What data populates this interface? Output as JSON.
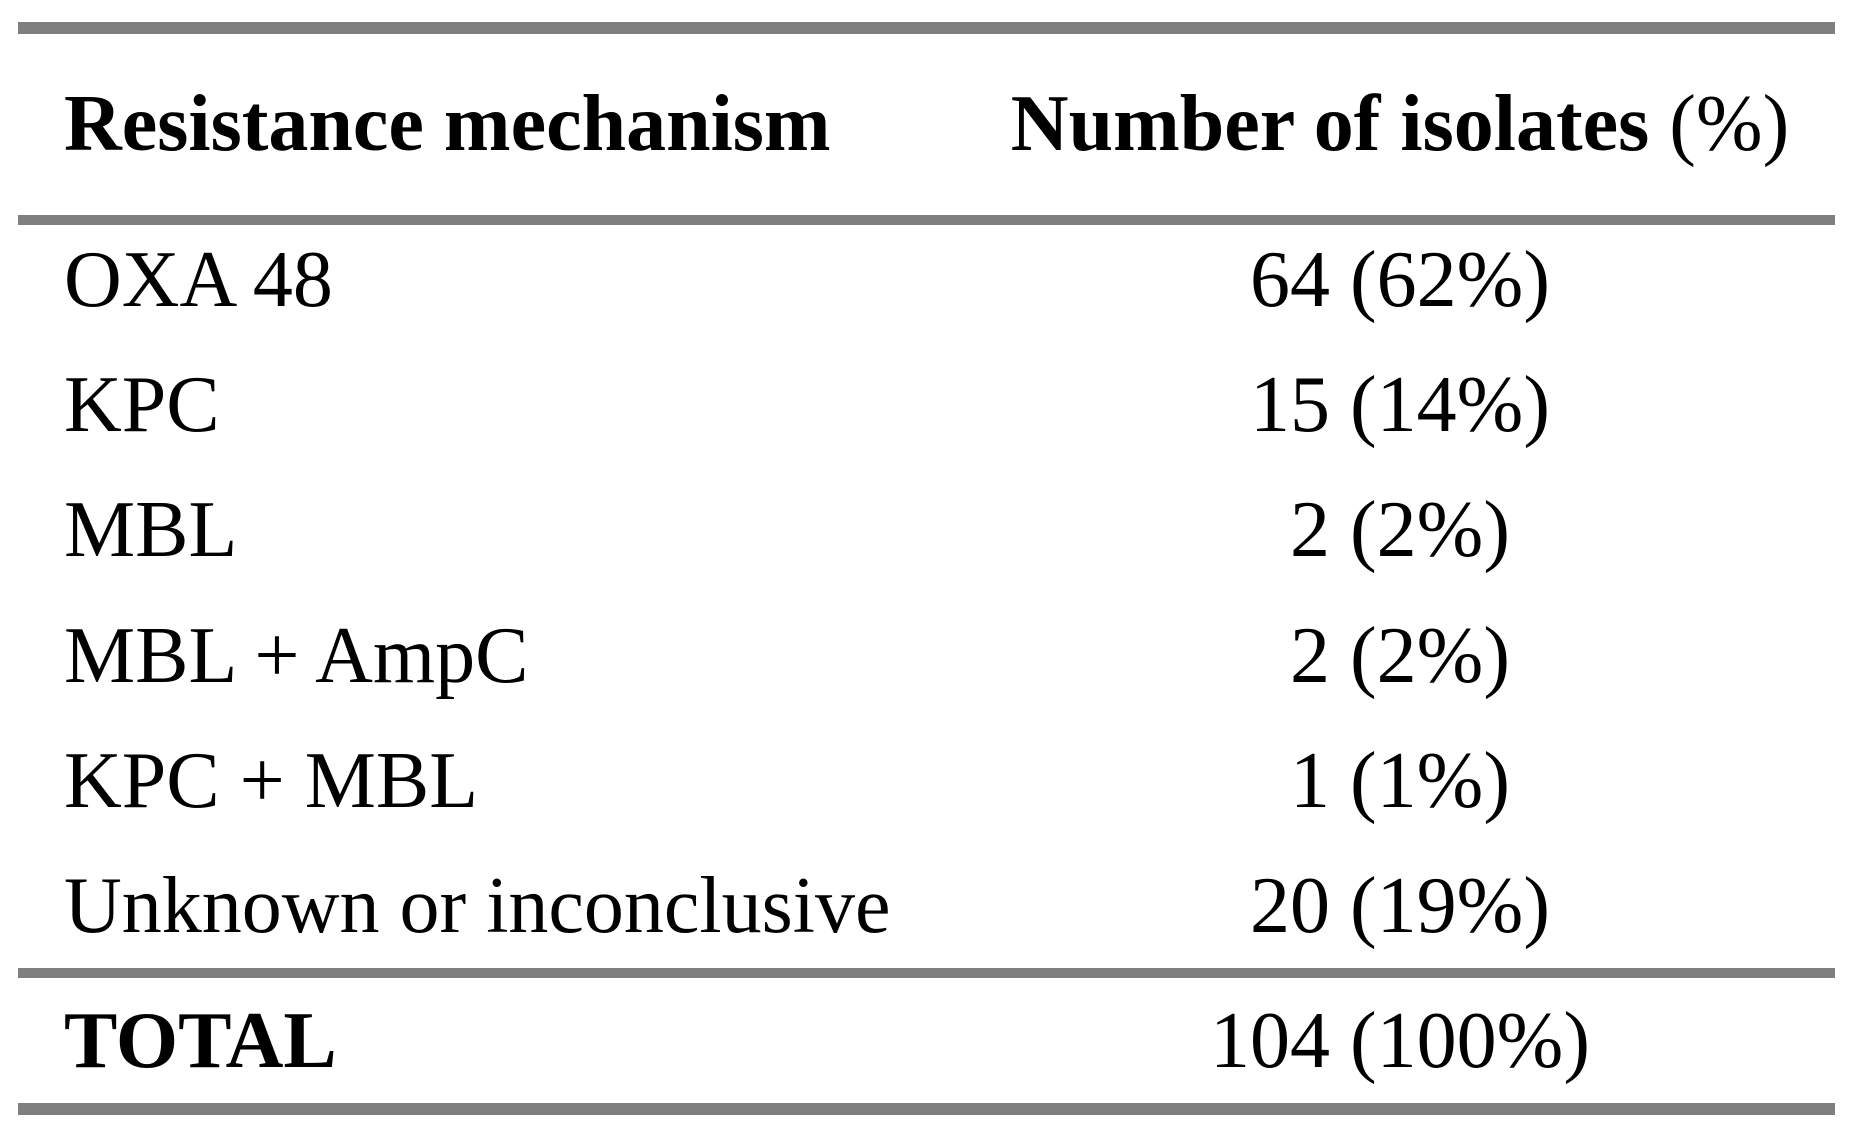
{
  "table": {
    "header": {
      "col1": "Resistance mechanism",
      "col2_main": "Number of isolates",
      "col2_suffix": " (%)"
    },
    "rows": [
      {
        "mechanism": "OXA 48",
        "value": "64 (62%)"
      },
      {
        "mechanism": "KPC",
        "value": "15 (14%)"
      },
      {
        "mechanism": "MBL",
        "value": "2 (2%)"
      },
      {
        "mechanism": "MBL + AmpC",
        "value": "2 (2%)"
      },
      {
        "mechanism": "KPC + MBL",
        "value": "1 (1%)"
      },
      {
        "mechanism": "Unknown or inconclusive",
        "value": "20 (19%)"
      }
    ],
    "total": {
      "label": "TOTAL",
      "value": "104 (100%)"
    }
  },
  "colors": {
    "rule_gray": "#7f7f7f",
    "text": "#000000",
    "background": "#ffffff"
  }
}
